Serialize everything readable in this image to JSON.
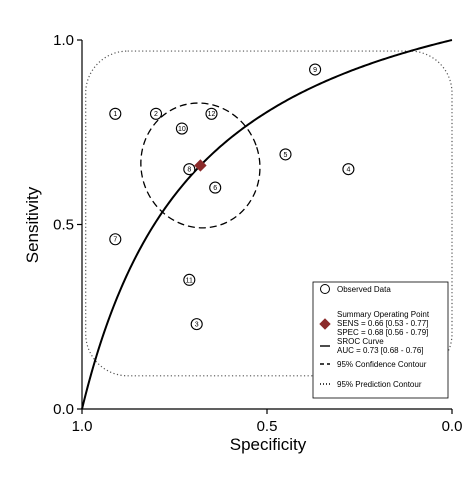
{
  "chart_data": {
    "type": "scatter",
    "xlabel": "Specificity",
    "ylabel": "Sensitivity",
    "x_reversed": true,
    "xlim": [
      1.0,
      0.0
    ],
    "ylim": [
      0.0,
      1.0
    ],
    "x_ticks": [
      {
        "value": 1.0,
        "label": "1.0"
      },
      {
        "value": 0.5,
        "label": "0.5"
      },
      {
        "value": 0.0,
        "label": "0.0"
      }
    ],
    "y_ticks": [
      {
        "value": 0.0,
        "label": "0.0"
      },
      {
        "value": 0.5,
        "label": "0.5"
      },
      {
        "value": 1.0,
        "label": "1.0"
      }
    ],
    "grid": false,
    "legend_position": "bottom-right",
    "observed_data": [
      {
        "label": "1",
        "specificity": 0.91,
        "sensitivity": 0.8
      },
      {
        "label": "2",
        "specificity": 0.8,
        "sensitivity": 0.8
      },
      {
        "label": "3",
        "specificity": 0.69,
        "sensitivity": 0.23
      },
      {
        "label": "4",
        "specificity": 0.28,
        "sensitivity": 0.65
      },
      {
        "label": "5",
        "specificity": 0.45,
        "sensitivity": 0.69
      },
      {
        "label": "6",
        "specificity": 0.64,
        "sensitivity": 0.6
      },
      {
        "label": "7",
        "specificity": 0.91,
        "sensitivity": 0.46
      },
      {
        "label": "8",
        "specificity": 0.71,
        "sensitivity": 0.65
      },
      {
        "label": "9",
        "specificity": 0.37,
        "sensitivity": 0.92
      },
      {
        "label": "10",
        "specificity": 0.73,
        "sensitivity": 0.76
      },
      {
        "label": "11",
        "specificity": 0.71,
        "sensitivity": 0.35
      },
      {
        "label": "12",
        "specificity": 0.65,
        "sensitivity": 0.8
      }
    ],
    "summary_point": {
      "specificity": 0.68,
      "sensitivity": 0.66,
      "color": "#8b2a2a"
    },
    "sroc_curve": {
      "auc": 0.73
    },
    "confidence_contour": {
      "center": [
        0.68,
        0.66
      ],
      "semi_axis_specificity": 0.16,
      "semi_axis_sensitivity": 0.17
    },
    "prediction_contour": {
      "specificity_range": [
        0.0,
        0.99
      ],
      "sensitivity_range": [
        0.09,
        0.97
      ]
    },
    "legend": [
      {
        "symbol": "circle",
        "lines": [
          "Observed Data"
        ]
      },
      {
        "symbol": "diamond",
        "lines": [
          "Summary Operating Point",
          "SENS = 0.66 [0.53 - 0.77]",
          "SPEC = 0.68 [0.56 - 0.79]"
        ]
      },
      {
        "symbol": "solid",
        "lines": [
          "SROC Curve",
          "AUC = 0.73 [0.68 - 0.76]"
        ]
      },
      {
        "symbol": "dashed",
        "lines": [
          "95% Confidence Contour"
        ]
      },
      {
        "symbol": "dotted",
        "lines": [
          "95% Prediction Contour"
        ]
      }
    ]
  }
}
